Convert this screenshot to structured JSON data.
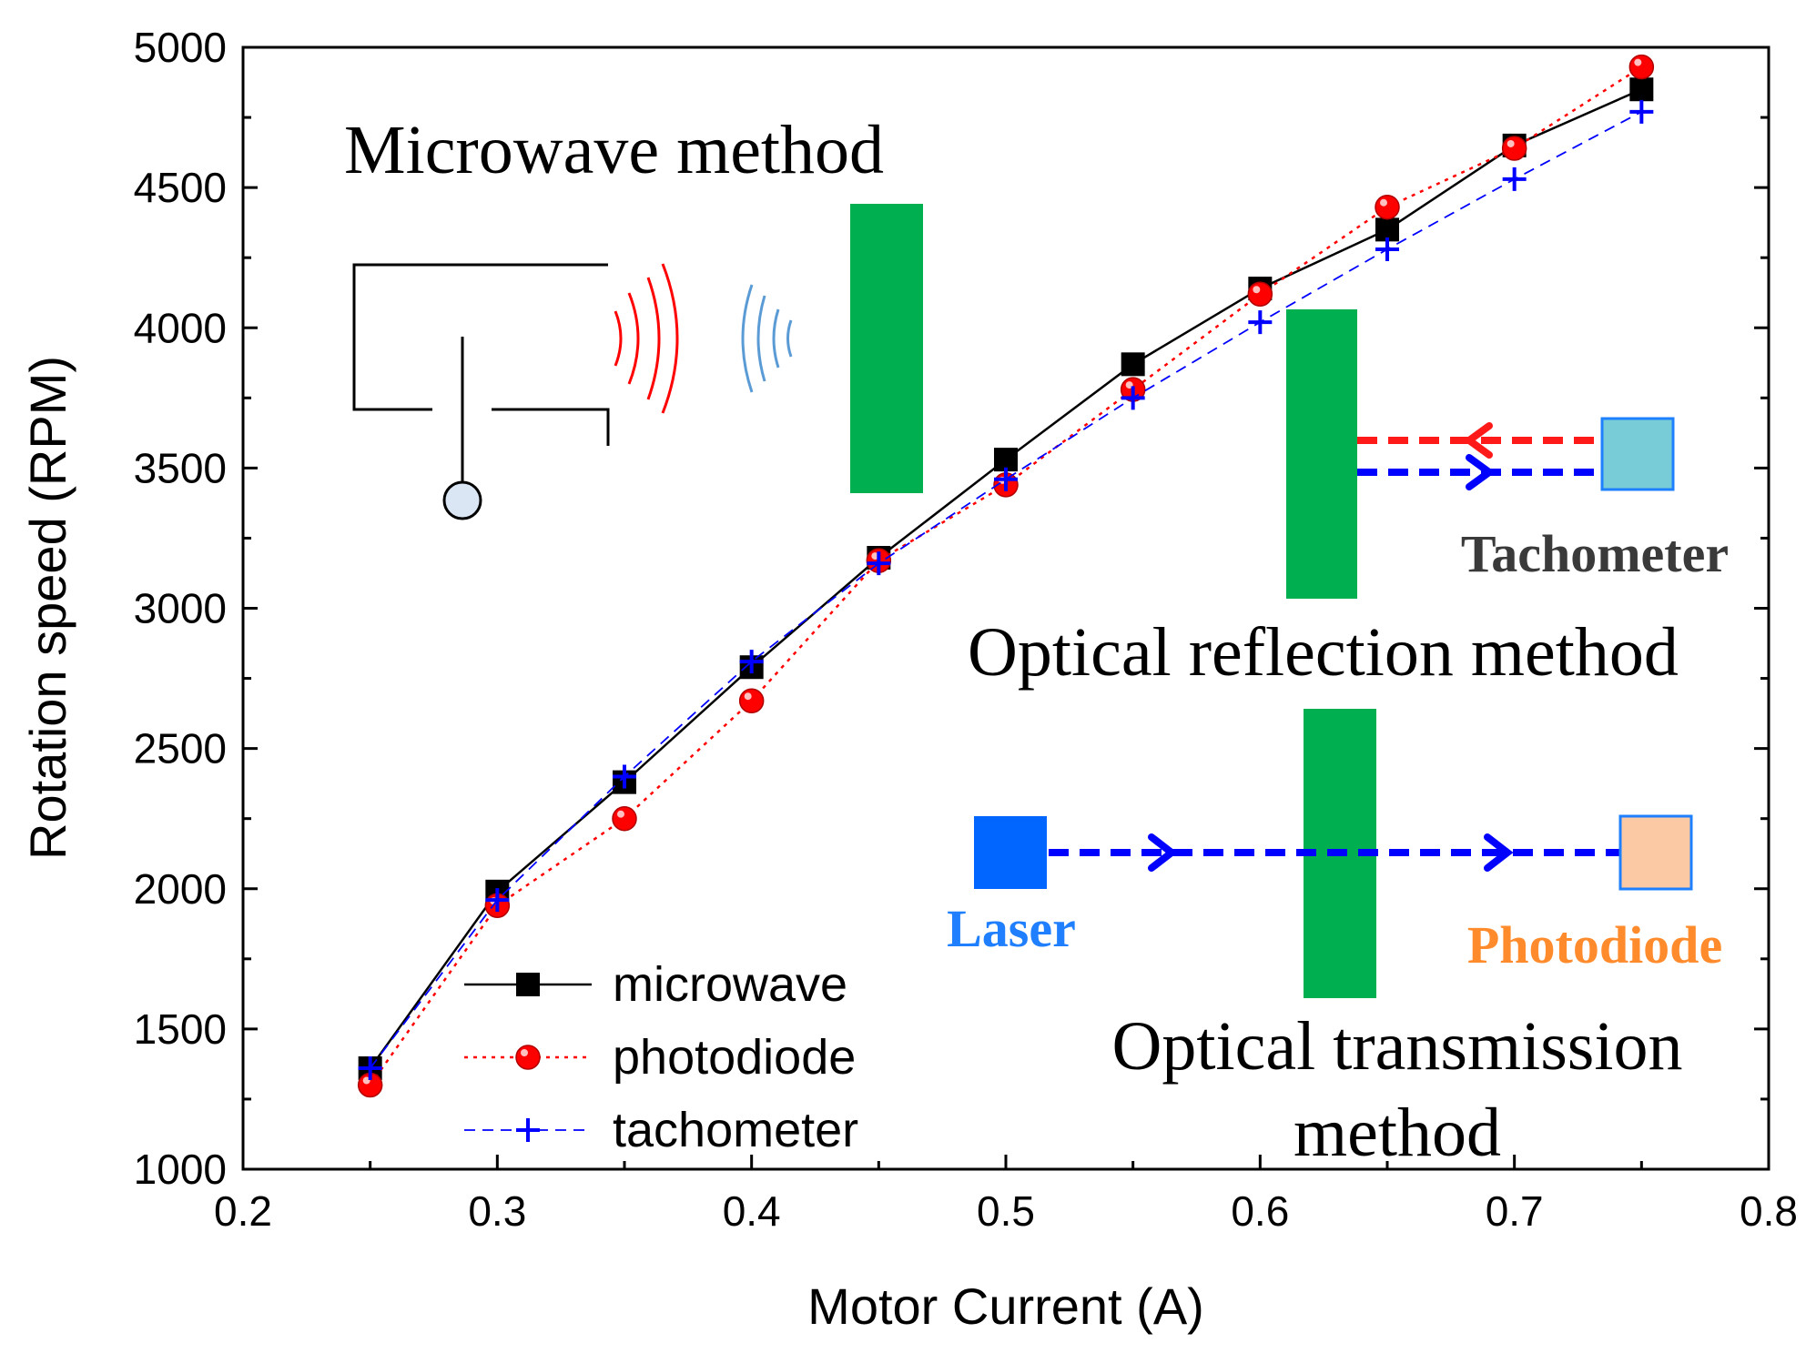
{
  "chart_data": {
    "type": "line",
    "x": [
      0.25,
      0.3,
      0.35,
      0.4,
      0.45,
      0.5,
      0.55,
      0.6,
      0.65,
      0.7,
      0.75
    ],
    "series": [
      {
        "name": "microwave",
        "color": "#000000",
        "marker": "square",
        "line": "solid",
        "values": [
          1360,
          1990,
          2380,
          2790,
          3180,
          3530,
          3870,
          4140,
          4350,
          4650,
          4850
        ]
      },
      {
        "name": "photodiode",
        "color": "#ff0000",
        "marker": "circle",
        "line": "dotted",
        "values": [
          1300,
          1940,
          2250,
          2670,
          3170,
          3440,
          3780,
          4120,
          4430,
          4640,
          4930
        ]
      },
      {
        "name": "tachometer",
        "color": "#0000ff",
        "marker": "plus",
        "line": "dashed",
        "values": [
          1360,
          1960,
          2400,
          2810,
          3160,
          3460,
          3750,
          4020,
          4280,
          4530,
          4770
        ]
      }
    ],
    "xlabel": "Motor Current (A)",
    "ylabel": "Rotation speed (RPM)",
    "xlim": [
      0.2,
      0.8
    ],
    "ylim": [
      1000,
      5000
    ],
    "xticks": [
      "0.2",
      "0.3",
      "0.4",
      "0.5",
      "0.6",
      "0.7",
      "0.8"
    ],
    "yticks": [
      "1000",
      "1500",
      "2000",
      "2500",
      "3000",
      "3500",
      "4000",
      "4500",
      "5000"
    ],
    "grid": false,
    "legend_position": "bottom-left"
  },
  "annotations": {
    "microwave_method": "Microwave method",
    "optical_reflection_method": "Optical reflection method",
    "optical_transmission_line1": "Optical transmission",
    "optical_transmission_line2": "method",
    "tachometer_label": "Tachometer",
    "laser_label": "Laser",
    "photodiode_label": "Photodiode"
  },
  "colors": {
    "blade_green": "#00b050",
    "tachometer_box": "#78ccd8",
    "laser_box": "#0066ff",
    "photodiode_box": "#fbcaa4",
    "laser_text": "#1f7fff",
    "photodiode_text": "#ff8b2c",
    "tachometer_text": "#3a3a3a",
    "wave_red": "#ff0000",
    "wave_blue": "#5b9bd5"
  }
}
